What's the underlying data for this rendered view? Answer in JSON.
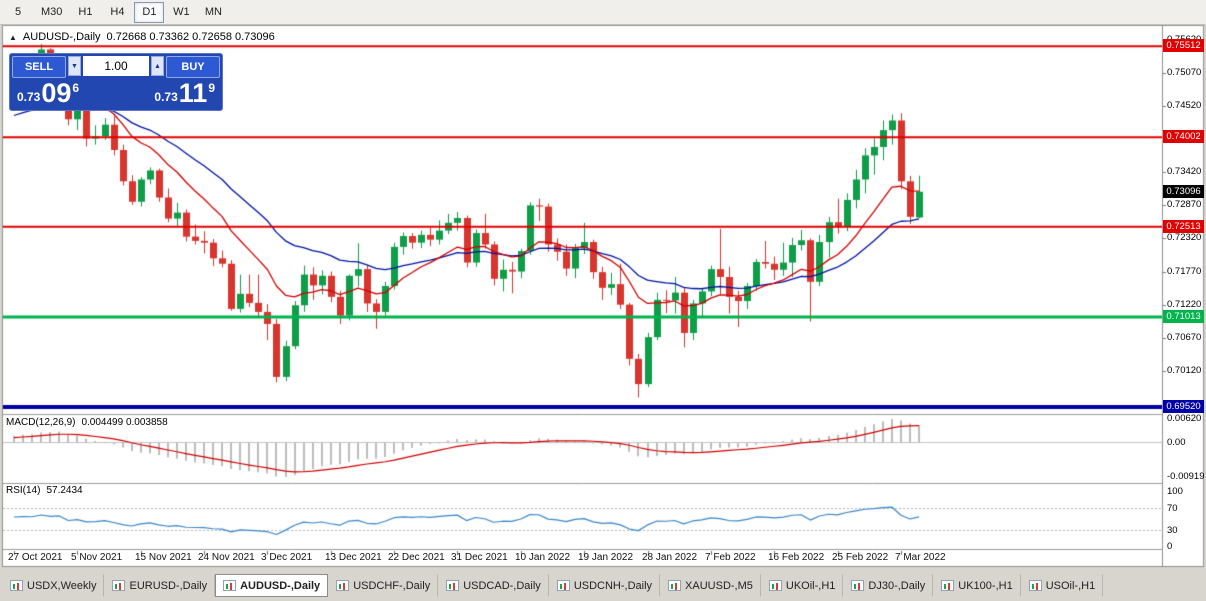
{
  "toolbar": {
    "timeframes": [
      {
        "label": "5",
        "active": false
      },
      {
        "label": "M30",
        "active": false
      },
      {
        "label": "H1",
        "active": false
      },
      {
        "label": "H4",
        "active": false
      },
      {
        "label": "D1",
        "active": true
      },
      {
        "label": "W1",
        "active": false
      },
      {
        "label": "MN",
        "active": false
      }
    ]
  },
  "chart_header": {
    "collapse_glyph": "▲",
    "symbol": "AUDUSD-,Daily",
    "ohlc": "0.72668 0.73362 0.72658 0.73096"
  },
  "trade_panel": {
    "sell_label": "SELL",
    "buy_label": "BUY",
    "volume": "1.00",
    "spin_down_glyph": "▼",
    "spin_up_glyph": "▲",
    "sell_price": {
      "prefix": "0.73",
      "big": "09",
      "sup": "6"
    },
    "buy_price": {
      "prefix": "0.73",
      "big": "11",
      "sup": "9"
    }
  },
  "chart_data": {
    "type": "candlestick",
    "symbol": "AUDUSD-,Daily",
    "timeframe": "Daily",
    "current_bar": {
      "open": 0.72668,
      "high": 0.73362,
      "low": 0.72658,
      "close": 0.73096
    },
    "x_labels": [
      "27 Oct 2021",
      "5 Nov 2021",
      "15 Nov 2021",
      "24 Nov 2021",
      "3 Dec 2021",
      "13 Dec 2021",
      "22 Dec 2021",
      "31 Dec 2021",
      "10 Jan 2022",
      "19 Jan 2022",
      "28 Jan 2022",
      "7 Feb 2022",
      "16 Feb 2022",
      "25 Feb 2022",
      "7 Mar 2022"
    ],
    "y_axis": {
      "price_min": 0.6942,
      "price_max": 0.7585,
      "labels": [
        {
          "text": "0.75620",
          "value": 0.7562
        },
        {
          "text": "0.75070",
          "value": 0.7507
        },
        {
          "text": "0.74520",
          "value": 0.7452
        },
        {
          "text": "0.73420",
          "value": 0.7342
        },
        {
          "text": "0.72870",
          "value": 0.7287
        },
        {
          "text": "0.72320",
          "value": 0.7232
        },
        {
          "text": "0.71770",
          "value": 0.7177
        },
        {
          "text": "0.71220",
          "value": 0.7122
        },
        {
          "text": "0.70670",
          "value": 0.7067
        },
        {
          "text": "0.70120",
          "value": 0.7012
        }
      ]
    },
    "colors": {
      "up": "#0f9d49",
      "down": "#d8352e",
      "ema_fast": "#d10000",
      "ema_slow": "#00149e"
    },
    "hlines": [
      {
        "text": "0.75512",
        "value": 0.75512,
        "color": "#e00000",
        "thickness": 2
      },
      {
        "text": "0.74002",
        "value": 0.74002,
        "color": "#e00000",
        "thickness": 2
      },
      {
        "text": "0.72513",
        "value": 0.72513,
        "color": "#e00000",
        "thickness": 2
      },
      {
        "text": "0.71013",
        "value": 0.71013,
        "color": "#00b44c",
        "thickness": 3
      },
      {
        "text": "0.69520",
        "value": 0.6952,
        "color": "#0000a8",
        "thickness": 4
      }
    ],
    "current_price": {
      "text": "0.73096",
      "value": 0.73096,
      "color": "#000000"
    },
    "candles": [
      [
        0.748,
        0.7505,
        0.7462,
        0.749
      ],
      [
        0.749,
        0.7525,
        0.7485,
        0.75
      ],
      [
        0.75,
        0.7536,
        0.7478,
        0.7498
      ],
      [
        0.7498,
        0.7555,
        0.749,
        0.7546
      ],
      [
        0.7546,
        0.7548,
        0.7498,
        0.7518
      ],
      [
        0.7518,
        0.7536,
        0.7505,
        0.7529
      ],
      [
        0.7529,
        0.7535,
        0.742,
        0.743
      ],
      [
        0.743,
        0.7455,
        0.7412,
        0.7449
      ],
      [
        0.7449,
        0.7452,
        0.7385,
        0.7398
      ],
      [
        0.7398,
        0.742,
        0.7388,
        0.7402
      ],
      [
        0.7402,
        0.7432,
        0.7396,
        0.7421
      ],
      [
        0.7421,
        0.7435,
        0.737,
        0.7379
      ],
      [
        0.7379,
        0.7388,
        0.732,
        0.7327
      ],
      [
        0.7327,
        0.7337,
        0.7288,
        0.7293
      ],
      [
        0.7293,
        0.7334,
        0.7285,
        0.733
      ],
      [
        0.733,
        0.735,
        0.7322,
        0.7345
      ],
      [
        0.7345,
        0.7348,
        0.7293,
        0.73
      ],
      [
        0.73,
        0.7315,
        0.7259,
        0.7265
      ],
      [
        0.7265,
        0.7291,
        0.7253,
        0.7275
      ],
      [
        0.7275,
        0.728,
        0.7227,
        0.7235
      ],
      [
        0.7235,
        0.7255,
        0.7222,
        0.7228
      ],
      [
        0.7228,
        0.7244,
        0.7207,
        0.7225
      ],
      [
        0.7225,
        0.7231,
        0.7186,
        0.7199
      ],
      [
        0.7199,
        0.7212,
        0.7184,
        0.719
      ],
      [
        0.719,
        0.7196,
        0.7112,
        0.7115
      ],
      [
        0.7115,
        0.7172,
        0.7109,
        0.714
      ],
      [
        0.714,
        0.7172,
        0.7118,
        0.7125
      ],
      [
        0.7125,
        0.7172,
        0.71,
        0.711
      ],
      [
        0.711,
        0.7123,
        0.7063,
        0.709
      ],
      [
        0.709,
        0.7098,
        0.6993,
        0.7002
      ],
      [
        0.7002,
        0.7062,
        0.6995,
        0.7053
      ],
      [
        0.7053,
        0.7128,
        0.7048,
        0.7121
      ],
      [
        0.7121,
        0.7187,
        0.711,
        0.7172
      ],
      [
        0.7172,
        0.7184,
        0.713,
        0.7154
      ],
      [
        0.7154,
        0.7179,
        0.7139,
        0.717
      ],
      [
        0.717,
        0.7177,
        0.7126,
        0.7135
      ],
      [
        0.7135,
        0.7145,
        0.709,
        0.7104
      ],
      [
        0.7104,
        0.7172,
        0.7096,
        0.717
      ],
      [
        0.717,
        0.7224,
        0.7152,
        0.7181
      ],
      [
        0.7181,
        0.7187,
        0.711,
        0.7124
      ],
      [
        0.7124,
        0.7131,
        0.7082,
        0.711
      ],
      [
        0.711,
        0.716,
        0.7104,
        0.7153
      ],
      [
        0.7153,
        0.7225,
        0.7147,
        0.7218
      ],
      [
        0.7218,
        0.7242,
        0.7205,
        0.7236
      ],
      [
        0.7236,
        0.7241,
        0.7215,
        0.7225
      ],
      [
        0.7225,
        0.7245,
        0.7216,
        0.7238
      ],
      [
        0.7238,
        0.725,
        0.7219,
        0.723
      ],
      [
        0.723,
        0.7262,
        0.7222,
        0.7245
      ],
      [
        0.7245,
        0.7273,
        0.7239,
        0.7258
      ],
      [
        0.7258,
        0.7276,
        0.7245,
        0.7266
      ],
      [
        0.7266,
        0.727,
        0.7184,
        0.7192
      ],
      [
        0.7192,
        0.7247,
        0.7185,
        0.7241
      ],
      [
        0.7241,
        0.7273,
        0.7215,
        0.7222
      ],
      [
        0.7222,
        0.7227,
        0.7154,
        0.7165
      ],
      [
        0.7165,
        0.7197,
        0.7144,
        0.718
      ],
      [
        0.718,
        0.7193,
        0.7141,
        0.7177
      ],
      [
        0.7177,
        0.7215,
        0.7166,
        0.7211
      ],
      [
        0.7211,
        0.7292,
        0.7205,
        0.7287
      ],
      [
        0.7287,
        0.7298,
        0.7261,
        0.7285
      ],
      [
        0.7285,
        0.729,
        0.721,
        0.7222
      ],
      [
        0.7222,
        0.7232,
        0.7195,
        0.721
      ],
      [
        0.721,
        0.7222,
        0.717,
        0.7182
      ],
      [
        0.7182,
        0.7223,
        0.7166,
        0.7216
      ],
      [
        0.7216,
        0.7258,
        0.7206,
        0.7226
      ],
      [
        0.7226,
        0.723,
        0.7165,
        0.7176
      ],
      [
        0.7176,
        0.7185,
        0.713,
        0.715
      ],
      [
        0.715,
        0.7175,
        0.7138,
        0.7156
      ],
      [
        0.7156,
        0.719,
        0.7115,
        0.7122
      ],
      [
        0.7122,
        0.7125,
        0.7021,
        0.7032
      ],
      [
        0.7032,
        0.704,
        0.6968,
        0.699
      ],
      [
        0.699,
        0.7075,
        0.6985,
        0.7068
      ],
      [
        0.7068,
        0.7142,
        0.7063,
        0.713
      ],
      [
        0.713,
        0.7146,
        0.7108,
        0.7129
      ],
      [
        0.7129,
        0.7168,
        0.7107,
        0.7142
      ],
      [
        0.7142,
        0.715,
        0.7051,
        0.7075
      ],
      [
        0.7075,
        0.713,
        0.7063,
        0.7124
      ],
      [
        0.7124,
        0.715,
        0.7102,
        0.7144
      ],
      [
        0.7144,
        0.7187,
        0.7136,
        0.7181
      ],
      [
        0.7181,
        0.7248,
        0.7139,
        0.7168
      ],
      [
        0.7168,
        0.7185,
        0.7107,
        0.7135
      ],
      [
        0.7135,
        0.7145,
        0.7085,
        0.7128
      ],
      [
        0.7128,
        0.7158,
        0.7115,
        0.7153
      ],
      [
        0.7153,
        0.7198,
        0.7145,
        0.7193
      ],
      [
        0.7193,
        0.7228,
        0.7182,
        0.719
      ],
      [
        0.719,
        0.7202,
        0.7163,
        0.718
      ],
      [
        0.718,
        0.7225,
        0.717,
        0.7192
      ],
      [
        0.7192,
        0.7233,
        0.7168,
        0.7221
      ],
      [
        0.7221,
        0.7246,
        0.7212,
        0.7229
      ],
      [
        0.7229,
        0.7232,
        0.7094,
        0.716
      ],
      [
        0.716,
        0.7238,
        0.7153,
        0.7226
      ],
      [
        0.7226,
        0.7268,
        0.72,
        0.7259
      ],
      [
        0.7259,
        0.7298,
        0.724,
        0.7252
      ],
      [
        0.7252,
        0.7307,
        0.7244,
        0.7296
      ],
      [
        0.7296,
        0.7346,
        0.7282,
        0.733
      ],
      [
        0.733,
        0.7382,
        0.7307,
        0.737
      ],
      [
        0.737,
        0.7398,
        0.7338,
        0.7384
      ],
      [
        0.7384,
        0.7428,
        0.7362,
        0.7412
      ],
      [
        0.7412,
        0.7438,
        0.7388,
        0.7428
      ],
      [
        0.7428,
        0.744,
        0.7314,
        0.7327
      ],
      [
        0.7327,
        0.7336,
        0.7256,
        0.7268
      ],
      [
        0.72668,
        0.73362,
        0.72658,
        0.73096
      ]
    ],
    "macd": {
      "label": "MACD(12,26,9)",
      "values_text": "0.004499 0.003858",
      "fast": 12,
      "slow": 26,
      "signal": 9,
      "axis_labels": [
        "0.00620",
        "0.00",
        "-0.00919"
      ],
      "histogram_color": "#bdbdbd",
      "signal_color": "#d10000"
    },
    "rsi": {
      "label": "RSI(14)",
      "value_text": "57.2434",
      "period": 14,
      "levels": [
        100,
        70,
        30,
        0
      ],
      "line_color": "#3a86c8"
    }
  },
  "tabbar": {
    "tabs": [
      {
        "label": "USDX,Weekly",
        "active": false
      },
      {
        "label": "EURUSD-,Daily",
        "active": false
      },
      {
        "label": "AUDUSD-,Daily",
        "active": true
      },
      {
        "label": "USDCHF-,Daily",
        "active": false
      },
      {
        "label": "USDCAD-,Daily",
        "active": false
      },
      {
        "label": "USDCNH-,Daily",
        "active": false
      },
      {
        "label": "XAUUSD-,M5",
        "active": false
      },
      {
        "label": "UKOil-,H1",
        "active": false
      },
      {
        "label": "DJ30-,Daily",
        "active": false
      },
      {
        "label": "UK100-,H1",
        "active": false
      },
      {
        "label": "USOil-,H1",
        "active": false
      }
    ]
  }
}
